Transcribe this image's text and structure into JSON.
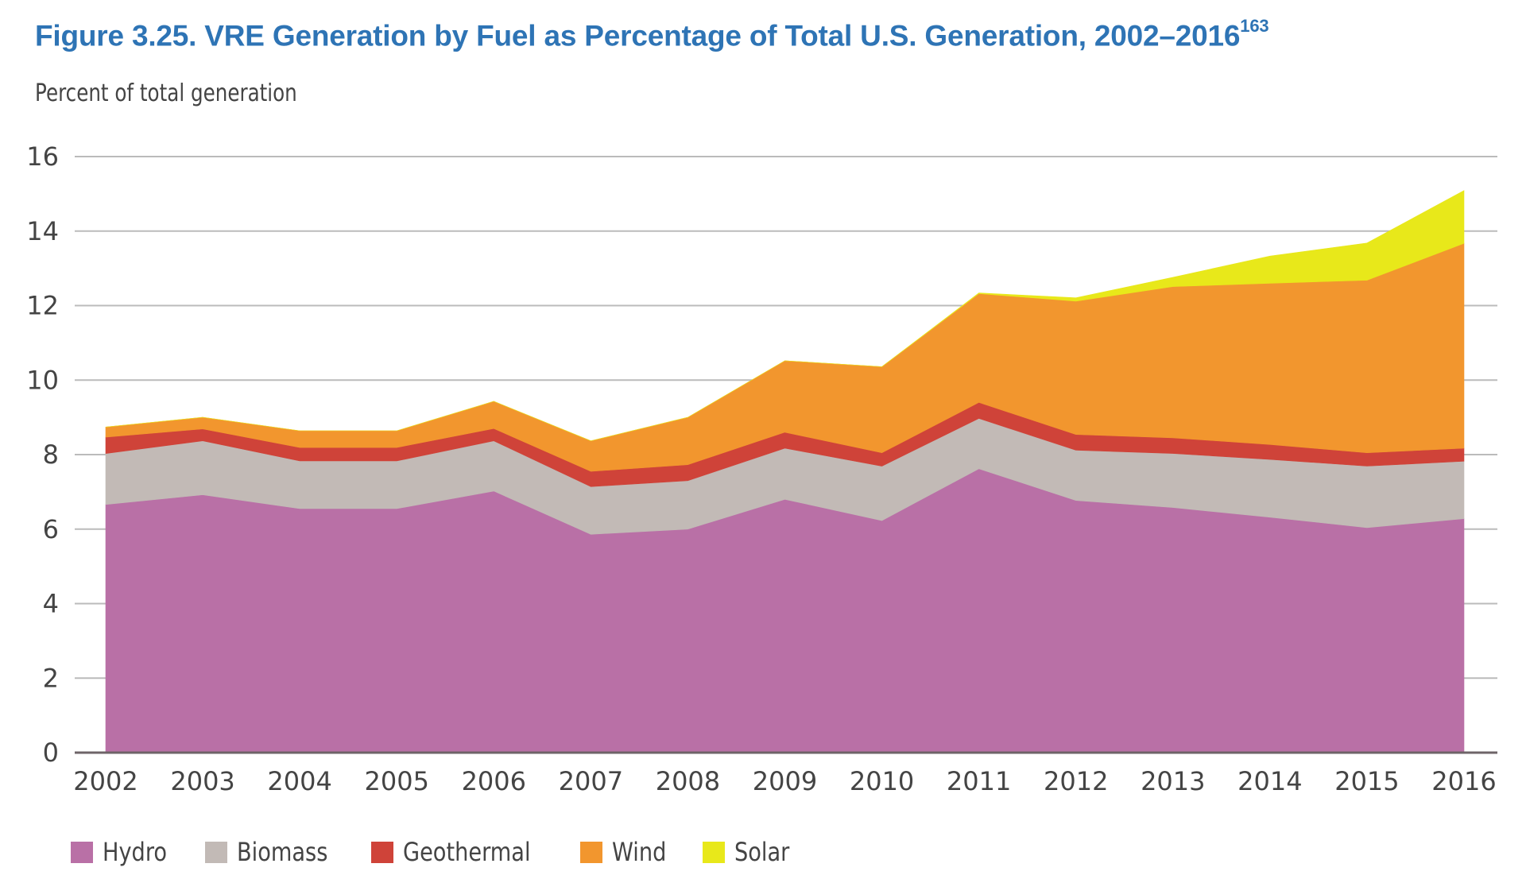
{
  "header": {
    "title": "Figure 3.25. VRE Generation by Fuel as Percentage of Total U.S. Generation, 2002–2016",
    "footnote": "163",
    "subtitle": "Percent of total generation"
  },
  "chart_data": {
    "type": "area",
    "stacked": true,
    "title": "Figure 3.25. VRE Generation by Fuel as Percentage of Total U.S. Generation, 2002–2016",
    "xlabel": "",
    "ylabel": "Percent of total generation",
    "ylim": [
      0,
      16
    ],
    "yticks": [
      0,
      2,
      4,
      6,
      8,
      10,
      12,
      14,
      16
    ],
    "grid": true,
    "legend_position": "bottom-left",
    "categories": [
      "2002",
      "2003",
      "2004",
      "2005",
      "2006",
      "2007",
      "2008",
      "2009",
      "2010",
      "2011",
      "2012",
      "2013",
      "2014",
      "2015",
      "2016"
    ],
    "series": [
      {
        "name": "Hydro",
        "color": "#B970A6",
        "values": [
          6.66,
          6.92,
          6.55,
          6.55,
          7.02,
          5.86,
          6.0,
          6.8,
          6.23,
          7.62,
          6.77,
          6.58,
          6.32,
          6.04,
          6.28
        ]
      },
      {
        "name": "Biomass",
        "color": "#C2BAB6",
        "values": [
          1.37,
          1.45,
          1.28,
          1.28,
          1.35,
          1.28,
          1.3,
          1.37,
          1.46,
          1.35,
          1.35,
          1.45,
          1.55,
          1.65,
          1.54
        ]
      },
      {
        "name": "Geothermal",
        "color": "#CF4339",
        "values": [
          0.44,
          0.32,
          0.36,
          0.36,
          0.33,
          0.41,
          0.43,
          0.43,
          0.36,
          0.43,
          0.42,
          0.42,
          0.4,
          0.36,
          0.35
        ]
      },
      {
        "name": "Wind",
        "color": "#F2962E",
        "values": [
          0.27,
          0.31,
          0.45,
          0.45,
          0.73,
          0.82,
          1.27,
          1.92,
          2.31,
          2.92,
          3.58,
          4.06,
          4.33,
          4.63,
          5.5
        ]
      },
      {
        "name": "Solar",
        "color": "#E8E81A",
        "values": [
          0.0,
          0.0,
          0.0,
          0.0,
          0.0,
          0.0,
          0.0,
          0.0,
          0.0,
          0.02,
          0.09,
          0.25,
          0.73,
          1.0,
          1.42
        ]
      }
    ]
  },
  "legend": {
    "items": [
      {
        "label": "Hydro",
        "color": "#B970A6"
      },
      {
        "label": "Biomass",
        "color": "#C2BAB6"
      },
      {
        "label": "Geothermal",
        "color": "#CF4339"
      },
      {
        "label": "Wind",
        "color": "#F2962E"
      },
      {
        "label": "Solar",
        "color": "#E8E81A"
      }
    ]
  },
  "colors": {
    "title": "#2E74B5",
    "text": "#444444",
    "gridline": "#BBBBBB",
    "axis": "#6E6468"
  }
}
